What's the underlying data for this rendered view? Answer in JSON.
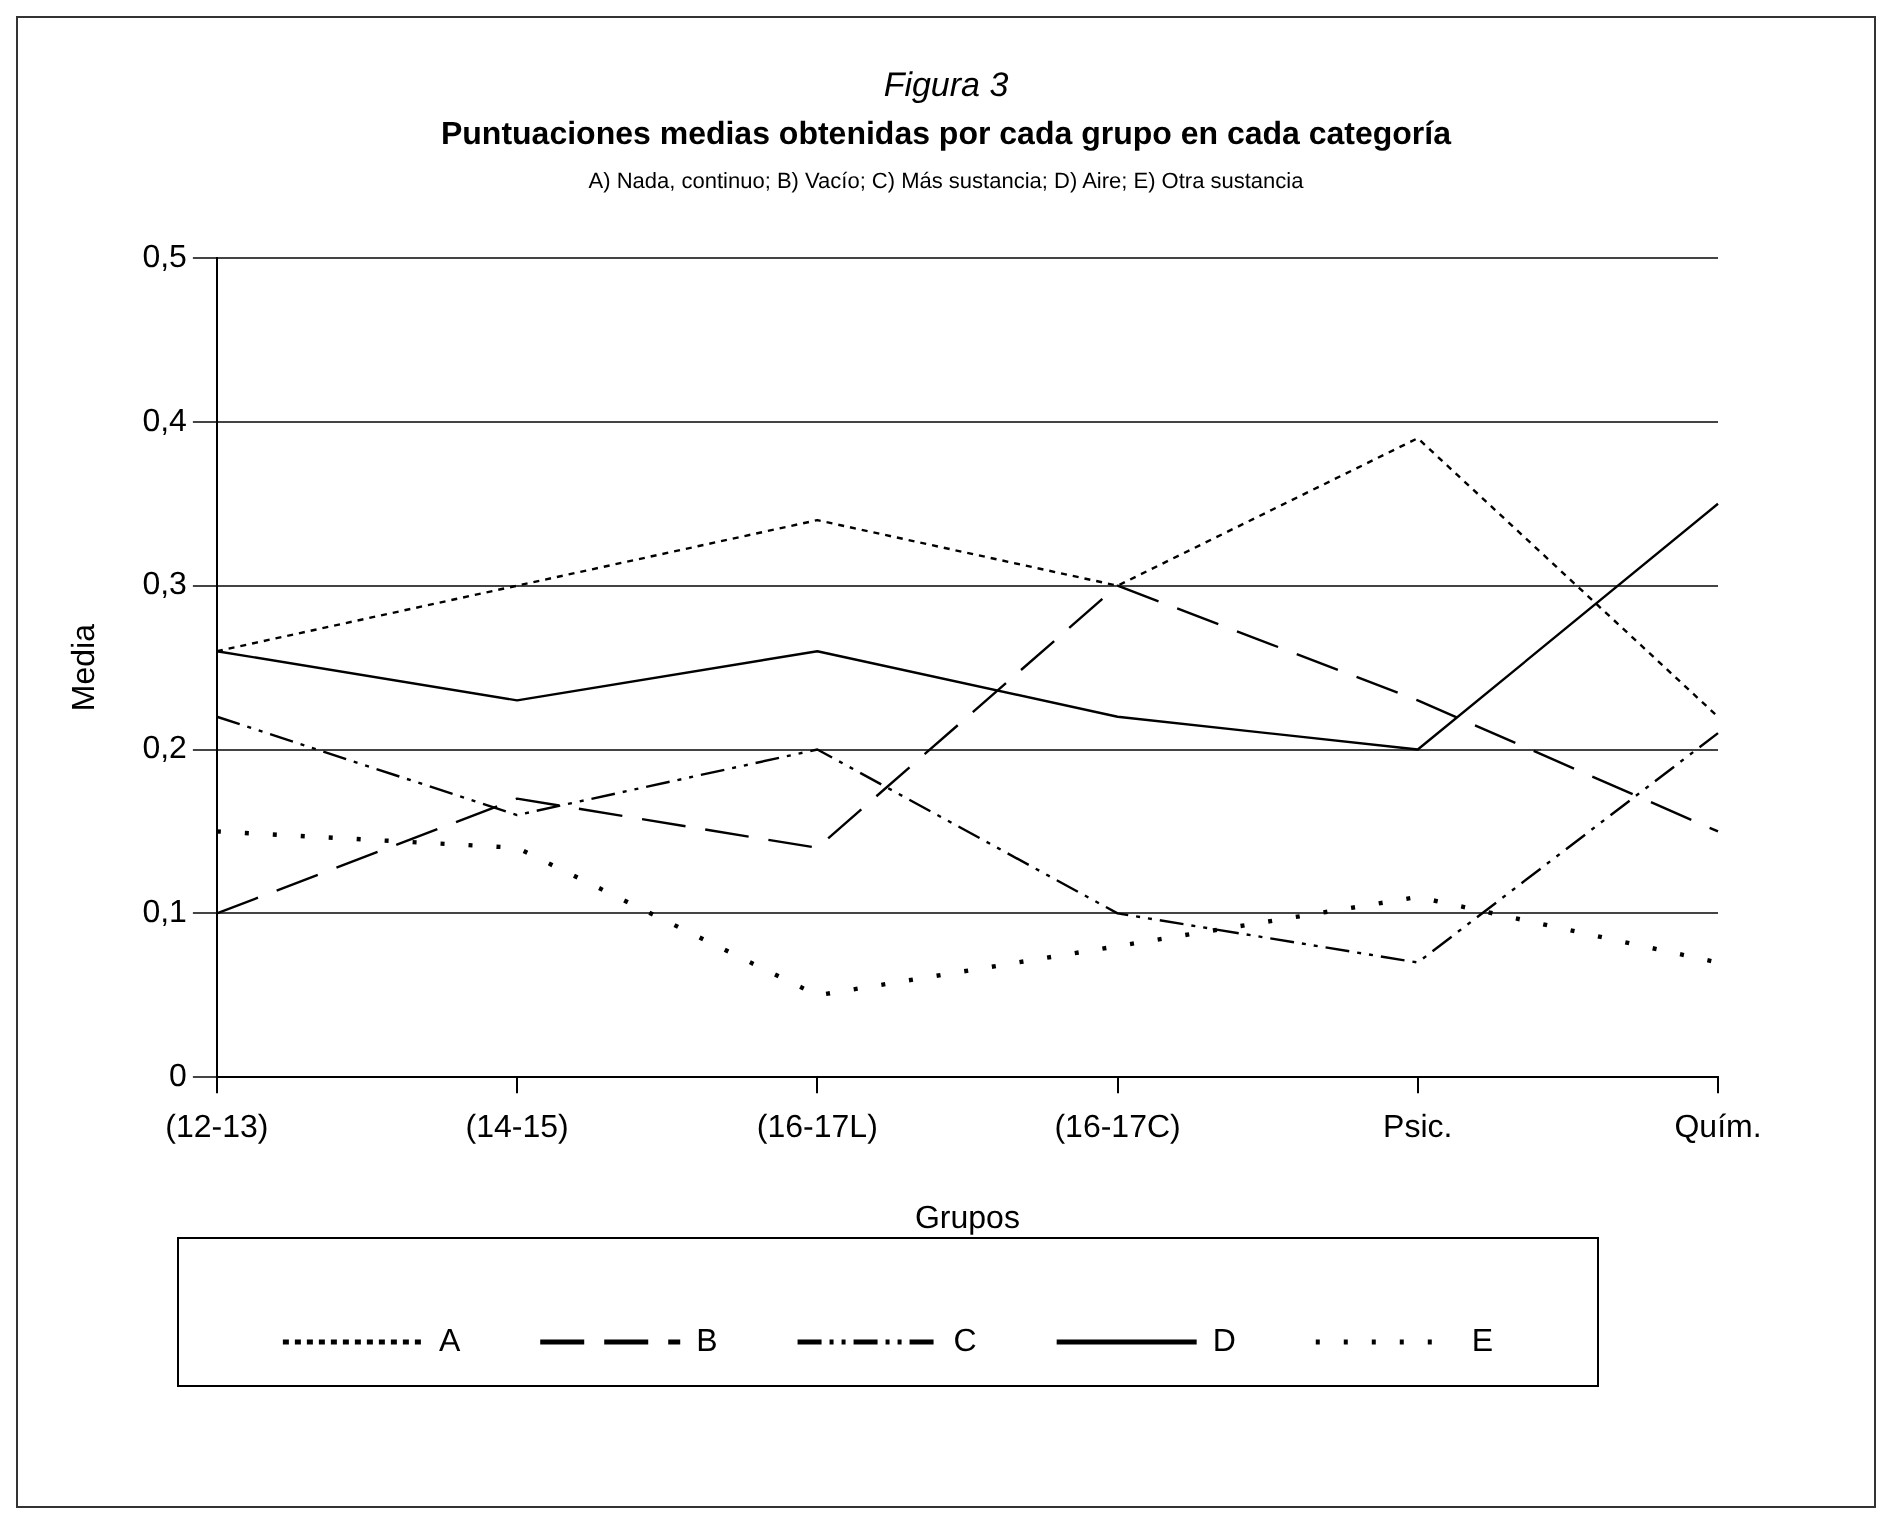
{
  "chart_data": {
    "type": "line",
    "title": "Figura 3",
    "subtitle": "Puntuaciones medias obtenidas por cada grupo en cada categoría",
    "annotations": [
      "A) Nada, continuo; B) Vacío; C) Más sustancia; D) Aire; E) Otra sustancia"
    ],
    "xlabel": "Grupos",
    "ylabel": "Media",
    "categories": [
      "(12-13)",
      "(14-15)",
      "(16-17L)",
      "(16-17C)",
      "Psic.",
      "Quím."
    ],
    "series": [
      {
        "name": "A",
        "color": "#000000",
        "line_style": "dashed",
        "values": [
          0.26,
          0.3,
          0.34,
          0.3,
          0.39,
          0.22
        ]
      },
      {
        "name": "B",
        "color": "#000000",
        "line_style": "longdash",
        "values": [
          0.1,
          0.17,
          0.14,
          0.3,
          0.23,
          0.15
        ]
      },
      {
        "name": "C",
        "color": "#000000",
        "line_style": "dashdot",
        "values": [
          0.22,
          0.16,
          0.2,
          0.1,
          0.07,
          0.21
        ]
      },
      {
        "name": "D",
        "color": "#000000",
        "line_style": "solid",
        "values": [
          0.26,
          0.23,
          0.26,
          0.22,
          0.2,
          0.35
        ]
      },
      {
        "name": "E",
        "color": "#000000",
        "line_style": "dotted",
        "values": [
          0.15,
          0.14,
          0.05,
          0.08,
          0.11,
          0.07
        ]
      }
    ],
    "ylim": [
      0,
      0.5
    ],
    "yticks": [
      {
        "value": 0,
        "label": "0"
      },
      {
        "value": 0.1,
        "label": "0,1"
      },
      {
        "value": 0.2,
        "label": "0,2"
      },
      {
        "value": 0.3,
        "label": "0,3"
      },
      {
        "value": 0.4,
        "label": "0,4"
      },
      {
        "value": 0.5,
        "label": "0,5"
      }
    ],
    "grid": "y",
    "legend": "bottom",
    "marker": "none"
  }
}
